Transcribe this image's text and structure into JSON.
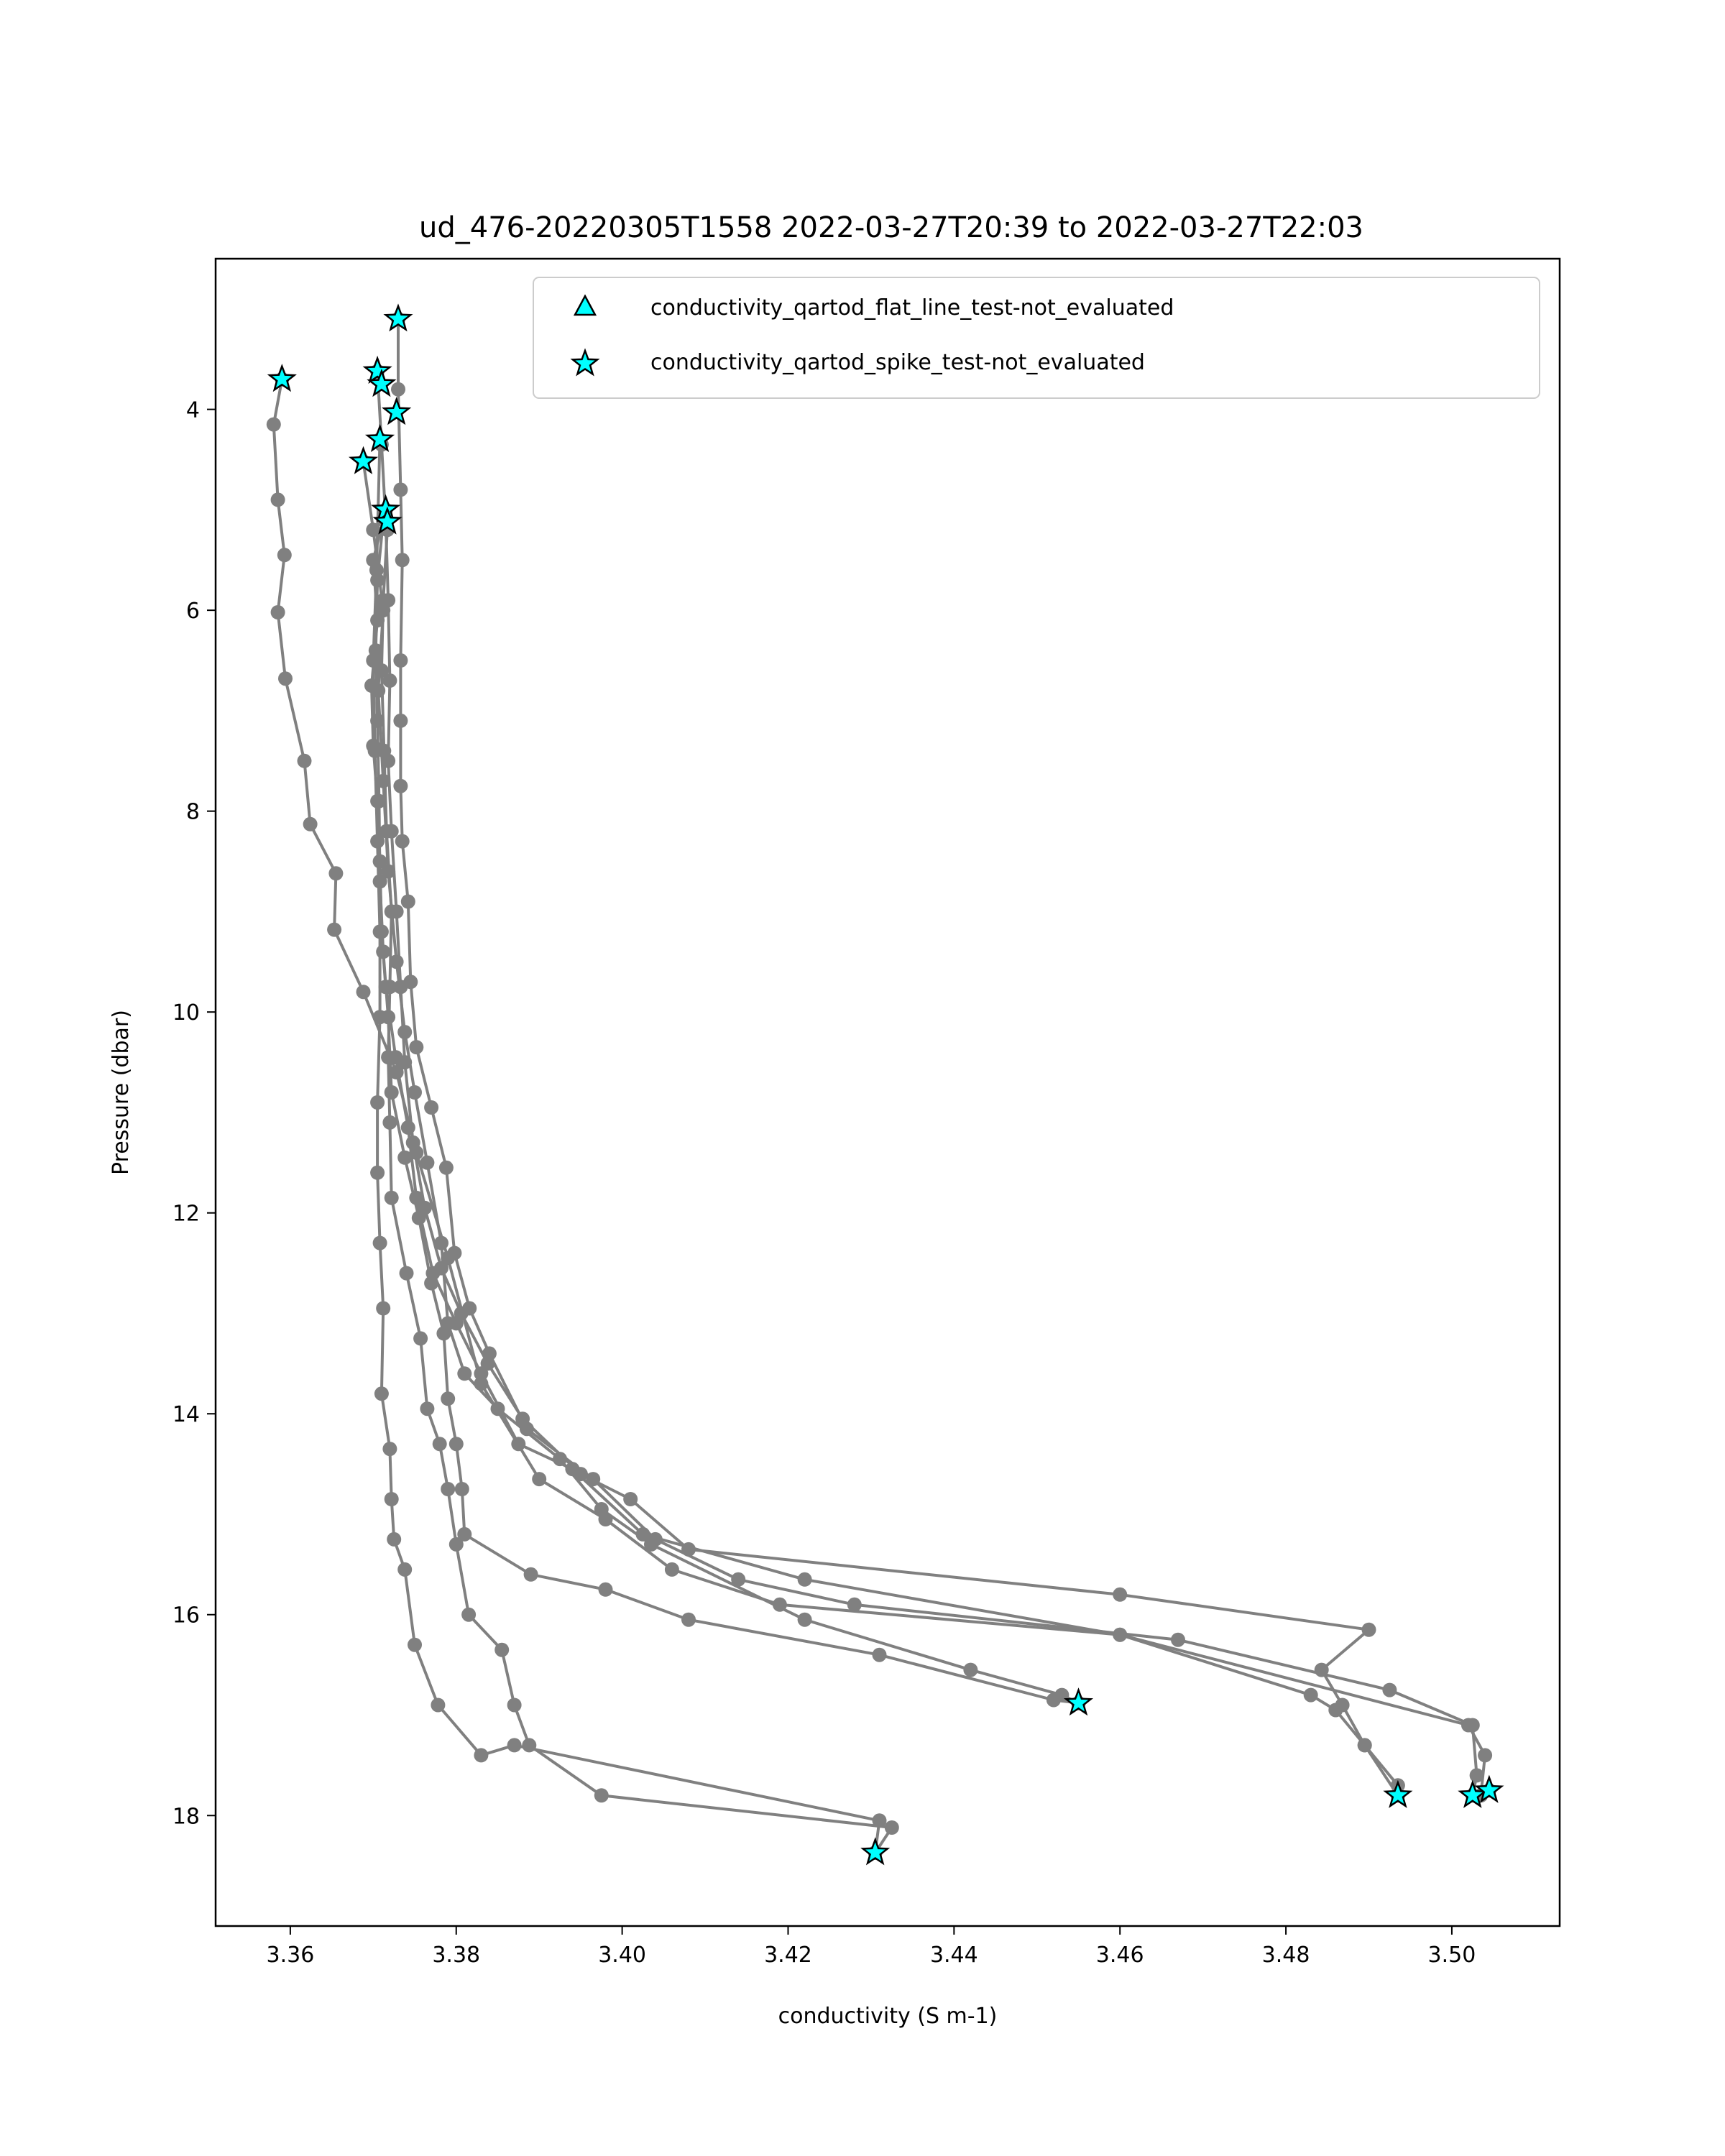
{
  "chart_data": {
    "type": "scatter",
    "title": "ud_476-20220305T1558 2022-03-27T20:39 to 2022-03-27T22:03",
    "xlabel": "conductivity (S m-1)",
    "ylabel": "Pressure (dbar)",
    "xlim": [
      3.351,
      3.513
    ],
    "ylim": [
      19.1,
      2.5
    ],
    "y_inverted": true,
    "x_ticks": [
      3.36,
      3.38,
      3.4,
      3.42,
      3.44,
      3.46,
      3.48,
      3.5
    ],
    "x_tick_labels": [
      "3.36",
      "3.38",
      "3.40",
      "3.42",
      "3.44",
      "3.46",
      "3.48",
      "3.50"
    ],
    "y_ticks": [
      4,
      6,
      8,
      10,
      12,
      14,
      16,
      18
    ],
    "y_tick_labels": [
      "4",
      "6",
      "8",
      "10",
      "12",
      "14",
      "16",
      "18"
    ],
    "grid": false,
    "legend_position": "upper-right",
    "legend": [
      {
        "label": "conductivity_qartod_flat_line_test-not_evaluated",
        "marker": "triangle"
      },
      {
        "label": "conductivity_qartod_spike_test-not_evaluated",
        "marker": "star"
      }
    ],
    "colors": {
      "profile_line": "#808080",
      "flag_marker_fill": "#00ffff",
      "flag_marker_edge": "#000000"
    },
    "series": [
      {
        "values": [
          [
            3.359,
            3.7
          ],
          [
            3.358,
            4.15
          ],
          [
            3.3585,
            4.9
          ],
          [
            3.3593,
            5.45
          ],
          [
            3.3585,
            6.02
          ],
          [
            3.3594,
            6.68
          ],
          [
            3.3617,
            7.5
          ],
          [
            3.3624,
            8.13
          ],
          [
            3.3655,
            8.62
          ],
          [
            3.3653,
            9.18
          ],
          [
            3.3688,
            9.8
          ],
          [
            3.3728,
            10.6
          ],
          [
            3.3752,
            11.4
          ],
          [
            3.379,
            12.45
          ],
          [
            3.383,
            13.7
          ],
          [
            3.39,
            14.65
          ],
          [
            3.398,
            15.05
          ],
          [
            3.406,
            15.55
          ],
          [
            3.419,
            15.9
          ],
          [
            3.46,
            16.2
          ],
          [
            3.502,
            17.1
          ],
          [
            3.504,
            17.4
          ],
          [
            3.5035,
            17.8
          ],
          [
            3.5045,
            17.75
          ]
        ]
      },
      {
        "values": [
          [
            3.373,
            3.1
          ],
          [
            3.373,
            3.8
          ],
          [
            3.3733,
            4.8
          ],
          [
            3.3735,
            5.5
          ],
          [
            3.3733,
            6.5
          ],
          [
            3.3733,
            7.1
          ],
          [
            3.3733,
            7.75
          ],
          [
            3.3735,
            8.3
          ],
          [
            3.3742,
            8.9
          ],
          [
            3.3745,
            9.7
          ],
          [
            3.3752,
            10.35
          ],
          [
            3.377,
            10.95
          ],
          [
            3.3788,
            11.55
          ],
          [
            3.3798,
            12.4
          ],
          [
            3.3816,
            12.95
          ],
          [
            3.384,
            13.4
          ],
          [
            3.3885,
            14.15
          ],
          [
            3.3965,
            14.65
          ],
          [
            3.404,
            15.25
          ],
          [
            3.414,
            15.65
          ],
          [
            3.428,
            15.9
          ],
          [
            3.467,
            16.25
          ],
          [
            3.4925,
            16.75
          ],
          [
            3.5025,
            17.1
          ],
          [
            3.503,
            17.6
          ],
          [
            3.5025,
            17.8
          ]
        ]
      },
      {
        "values": [
          [
            3.3705,
            3.62
          ],
          [
            3.371,
            4.35
          ],
          [
            3.3715,
            5.1
          ],
          [
            3.3718,
            5.9
          ],
          [
            3.372,
            6.7
          ],
          [
            3.3718,
            7.5
          ],
          [
            3.3722,
            8.2
          ],
          [
            3.3728,
            9.0
          ],
          [
            3.3733,
            9.75
          ],
          [
            3.3738,
            10.5
          ],
          [
            3.3748,
            11.3
          ],
          [
            3.3762,
            11.95
          ],
          [
            3.3782,
            12.55
          ],
          [
            3.3806,
            13.0
          ],
          [
            3.3838,
            13.5
          ],
          [
            3.388,
            14.05
          ],
          [
            3.395,
            14.6
          ],
          [
            3.401,
            14.85
          ],
          [
            3.408,
            15.35
          ],
          [
            3.46,
            15.8
          ],
          [
            3.49,
            16.15
          ],
          [
            3.4843,
            16.55
          ],
          [
            3.4868,
            16.9
          ],
          [
            3.4895,
            17.3
          ],
          [
            3.4935,
            17.8
          ]
        ]
      },
      {
        "values": [
          [
            3.3715,
            5.0
          ],
          [
            3.37,
            5.5
          ],
          [
            3.3705,
            6.1
          ],
          [
            3.3698,
            6.75
          ],
          [
            3.37,
            7.35
          ],
          [
            3.3705,
            7.9
          ],
          [
            3.3708,
            8.5
          ],
          [
            3.371,
            9.2
          ],
          [
            3.3715,
            9.75
          ],
          [
            3.3727,
            10.45
          ],
          [
            3.3742,
            11.15
          ],
          [
            3.3752,
            11.85
          ],
          [
            3.3772,
            12.6
          ],
          [
            3.38,
            13.1
          ],
          [
            3.383,
            13.6
          ],
          [
            3.3875,
            14.3
          ],
          [
            3.394,
            14.55
          ],
          [
            3.4025,
            15.2
          ],
          [
            3.422,
            15.65
          ],
          [
            3.46,
            16.2
          ],
          [
            3.483,
            16.8
          ],
          [
            3.486,
            16.95
          ],
          [
            3.4895,
            17.3
          ],
          [
            3.4935,
            17.7
          ]
        ]
      },
      {
        "values": [
          [
            3.3688,
            4.52
          ],
          [
            3.37,
            5.2
          ],
          [
            3.3712,
            6.0
          ],
          [
            3.3706,
            6.8
          ],
          [
            3.3712,
            7.7
          ],
          [
            3.3718,
            8.6
          ],
          [
            3.3728,
            9.5
          ],
          [
            3.3738,
            10.2
          ],
          [
            3.375,
            10.8
          ],
          [
            3.3765,
            11.5
          ],
          [
            3.3782,
            12.3
          ],
          [
            3.379,
            13.1
          ],
          [
            3.381,
            13.6
          ],
          [
            3.385,
            13.95
          ],
          [
            3.3925,
            14.45
          ],
          [
            3.3975,
            14.95
          ],
          [
            3.4035,
            15.3
          ],
          [
            3.422,
            16.05
          ],
          [
            3.442,
            16.55
          ],
          [
            3.453,
            16.8
          ],
          [
            3.455,
            16.88
          ]
        ]
      },
      {
        "values": [
          [
            3.3712,
            5.1
          ],
          [
            3.3705,
            5.7
          ],
          [
            3.3703,
            6.4
          ],
          [
            3.3705,
            7.1
          ],
          [
            3.3707,
            7.9
          ],
          [
            3.3708,
            8.7
          ],
          [
            3.3712,
            9.4
          ],
          [
            3.3718,
            10.05
          ],
          [
            3.3722,
            10.8
          ],
          [
            3.3738,
            11.45
          ],
          [
            3.3755,
            12.05
          ],
          [
            3.377,
            12.7
          ],
          [
            3.3785,
            13.2
          ],
          [
            3.379,
            13.85
          ],
          [
            3.38,
            14.3
          ],
          [
            3.3807,
            14.75
          ],
          [
            3.381,
            15.2
          ],
          [
            3.389,
            15.6
          ],
          [
            3.398,
            15.75
          ],
          [
            3.408,
            16.05
          ],
          [
            3.431,
            16.4
          ],
          [
            3.452,
            16.85
          ],
          [
            3.455,
            16.88
          ]
        ]
      },
      {
        "values": [
          [
            3.3717,
            5.2
          ],
          [
            3.3712,
            5.9
          ],
          [
            3.371,
            6.6
          ],
          [
            3.3713,
            7.4
          ],
          [
            3.3716,
            8.2
          ],
          [
            3.3722,
            9.0
          ],
          [
            3.372,
            9.75
          ],
          [
            3.3718,
            10.45
          ],
          [
            3.372,
            11.1
          ],
          [
            3.3722,
            11.85
          ],
          [
            3.374,
            12.6
          ],
          [
            3.3757,
            13.25
          ],
          [
            3.3765,
            13.95
          ],
          [
            3.378,
            14.3
          ],
          [
            3.379,
            14.75
          ],
          [
            3.38,
            15.3
          ],
          [
            3.3815,
            16.0
          ],
          [
            3.3855,
            16.35
          ],
          [
            3.387,
            16.9
          ],
          [
            3.3888,
            17.3
          ],
          [
            3.3975,
            17.8
          ],
          [
            3.4325,
            18.12
          ],
          [
            3.4305,
            18.37
          ]
        ]
      },
      {
        "values": [
          [
            3.3708,
            4.3
          ],
          [
            3.3704,
            5.6
          ],
          [
            3.37,
            6.5
          ],
          [
            3.3702,
            7.4
          ],
          [
            3.3705,
            8.3
          ],
          [
            3.3708,
            9.2
          ],
          [
            3.3708,
            10.05
          ],
          [
            3.3705,
            10.9
          ],
          [
            3.3705,
            11.6
          ],
          [
            3.3708,
            12.3
          ],
          [
            3.3712,
            12.95
          ],
          [
            3.371,
            13.8
          ],
          [
            3.372,
            14.35
          ],
          [
            3.3722,
            14.85
          ],
          [
            3.3725,
            15.25
          ],
          [
            3.3738,
            15.55
          ],
          [
            3.375,
            16.3
          ],
          [
            3.3778,
            16.9
          ],
          [
            3.383,
            17.4
          ],
          [
            3.387,
            17.3
          ],
          [
            3.431,
            18.05
          ],
          [
            3.4305,
            18.37
          ]
        ]
      }
    ],
    "flag_points": [
      {
        "label": "conductivity_qartod_spike_test-not_evaluated",
        "points": [
          [
            3.373,
            3.1
          ],
          [
            3.359,
            3.7
          ],
          [
            3.3705,
            3.62
          ],
          [
            3.371,
            3.75
          ],
          [
            3.3728,
            4.03
          ],
          [
            3.3708,
            4.3
          ],
          [
            3.3688,
            4.52
          ],
          [
            3.3715,
            5.0
          ],
          [
            3.3717,
            5.12
          ],
          [
            3.455,
            16.88
          ],
          [
            3.4935,
            17.8
          ],
          [
            3.5025,
            17.8
          ],
          [
            3.5045,
            17.75
          ],
          [
            3.4305,
            18.37
          ]
        ]
      }
    ]
  }
}
